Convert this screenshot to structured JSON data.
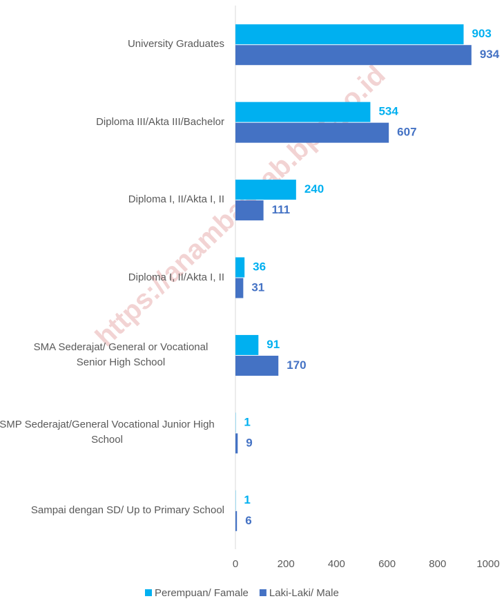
{
  "chart_data": {
    "type": "hbar",
    "categories": [
      "University Graduates",
      "Diploma III/Akta III/Bachelor",
      "Diploma I, II/Akta I, II",
      "Diploma I, II/Akta I, II",
      "SMA Sederajat/ General or Vocational Senior High School",
      "SMP Sederajat/General Vocational Junior High School",
      "Sampai dengan SD/ Up to Primary School"
    ],
    "series": [
      {
        "name": "Perempuan/ Famale",
        "color": "#00b0f0",
        "values": [
          903,
          534,
          240,
          36,
          91,
          1,
          1
        ]
      },
      {
        "name": "Laki-Laki/ Male",
        "color": "#4472c4",
        "values": [
          934,
          607,
          111,
          31,
          170,
          9,
          6
        ]
      }
    ],
    "xlim": [
      0,
      1000
    ],
    "xticks": [
      0,
      200,
      400,
      600,
      800,
      1000
    ],
    "legend": "bottom",
    "watermark": "https://anambaskab.bps.go.id"
  }
}
